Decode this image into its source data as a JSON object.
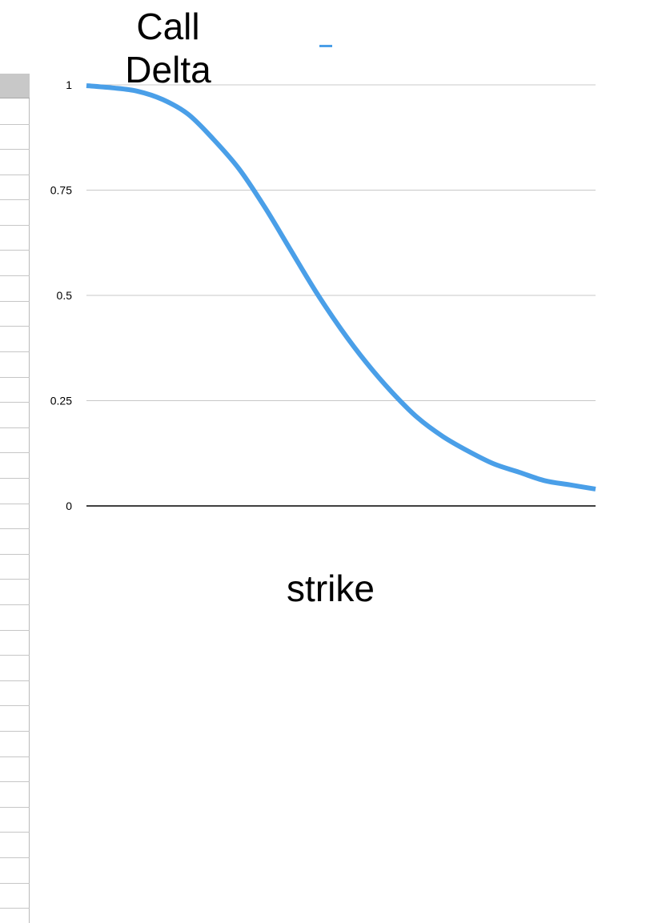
{
  "chart_data": {
    "type": "line",
    "title": "Call\nDelta",
    "xlabel": "strike",
    "ylabel": "",
    "ylim": [
      0,
      1
    ],
    "yticks": [
      "1",
      "0.75",
      "0.5",
      "0.25",
      "0"
    ],
    "ytick_values": [
      1,
      0.75,
      0.5,
      0.25,
      0
    ],
    "grid": true,
    "legend_position": "top",
    "series": [
      {
        "color": "#4a9fe8",
        "x": [
          0,
          0.05,
          0.1,
          0.15,
          0.2,
          0.25,
          0.3,
          0.35,
          0.4,
          0.45,
          0.5,
          0.55,
          0.6,
          0.65,
          0.7,
          0.75,
          0.8,
          0.85,
          0.9,
          0.95,
          1.0
        ],
        "values": [
          0.998,
          0.993,
          0.985,
          0.965,
          0.93,
          0.87,
          0.8,
          0.71,
          0.61,
          0.51,
          0.42,
          0.34,
          0.27,
          0.21,
          0.165,
          0.13,
          0.1,
          0.08,
          0.06,
          0.05,
          0.04
        ]
      }
    ]
  }
}
